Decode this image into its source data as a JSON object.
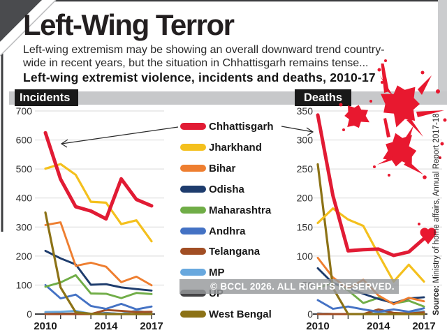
{
  "header": {
    "title": "Left-Wing Terror",
    "subtitle_line1": "Left-wing extremism may be showing an overall downward trend country-",
    "subtitle_line2": "wide in recent years, but the situation in Chhattisgarh remains tense...",
    "chart_heading": "Left-wing extremist violence, incidents and deaths, 2010-17"
  },
  "panels": {
    "left_label": "Incidents",
    "right_label": "Deaths"
  },
  "legend": {
    "items": [
      {
        "name": "Chhattisgarh",
        "color": "#e11b34"
      },
      {
        "name": "Jharkhand",
        "color": "#f4c01d"
      },
      {
        "name": "Bihar",
        "color": "#ee7e30"
      },
      {
        "name": "Odisha",
        "color": "#1e3c6d"
      },
      {
        "name": "Maharashtra",
        "color": "#70ad47"
      },
      {
        "name": "Andhra",
        "color": "#4472c4"
      },
      {
        "name": "Telangana",
        "color": "#a14e24"
      },
      {
        "name": "MP",
        "color": "#68a8de"
      },
      {
        "name": "UP",
        "color": "#444446"
      },
      {
        "name": "West Bengal",
        "color": "#8c7216"
      }
    ]
  },
  "watermark": "© BCCL 2026. ALL RIGHTS RESERVED.",
  "source": {
    "prefix": "Source:",
    "text": " Ministry of home affairs, Annual Report 2017-18"
  },
  "colors": {
    "splatter_red": "#e8182f",
    "band_gray": "#c7c8ca",
    "box_black": "#191919"
  },
  "chart_data": [
    {
      "type": "line",
      "title": "Incidents",
      "x": [
        2010,
        2011,
        2012,
        2013,
        2014,
        2015,
        2016,
        2017
      ],
      "x_tick_labels": [
        {
          "label": "2010",
          "index": 0
        },
        {
          "label": "2014",
          "index": 4
        },
        {
          "label": "2017",
          "index": 7
        }
      ],
      "ylim": [
        0,
        700
      ],
      "ytick_step": 100,
      "grid": true,
      "series": [
        {
          "name": "Chhattisgarh",
          "values": [
            625,
            465,
            370,
            355,
            328,
            466,
            395,
            373
          ]
        },
        {
          "name": "Jharkhand",
          "values": [
            501,
            517,
            480,
            387,
            384,
            310,
            323,
            251
          ]
        },
        {
          "name": "Bihar",
          "values": [
            307,
            316,
            166,
            177,
            163,
            110,
            129,
            99
          ]
        },
        {
          "name": "Odisha",
          "values": [
            218,
            192,
            171,
            101,
            103,
            92,
            86,
            81
          ]
        },
        {
          "name": "Maharashtra",
          "values": [
            94,
            109,
            134,
            71,
            70,
            55,
            73,
            69
          ]
        },
        {
          "name": "Andhra",
          "values": [
            100,
            54,
            67,
            28,
            18,
            35,
            16,
            26
          ]
        },
        {
          "name": "Telangana",
          "values": [
            0,
            0,
            0,
            0,
            14,
            11,
            7,
            8
          ]
        },
        {
          "name": "MP",
          "values": [
            7,
            8,
            11,
            1,
            3,
            1,
            12,
            3
          ]
        },
        {
          "name": "UP",
          "values": [
            6,
            1,
            2,
            0,
            4,
            0,
            0,
            0
          ]
        },
        {
          "name": "West Bengal",
          "values": [
            350,
            92,
            6,
            1,
            0,
            0,
            0,
            0
          ]
        }
      ]
    },
    {
      "type": "line",
      "title": "Deaths",
      "x": [
        2010,
        2011,
        2012,
        2013,
        2014,
        2015,
        2016,
        2017
      ],
      "x_tick_labels": [
        {
          "label": "2010",
          "index": 0
        },
        {
          "label": "2014",
          "index": 4
        },
        {
          "label": "2017",
          "index": 7
        }
      ],
      "ylim": [
        0,
        350
      ],
      "ytick_step": 50,
      "grid": true,
      "series": [
        {
          "name": "Chhattisgarh",
          "values": [
            343,
            204,
            109,
            111,
            112,
            101,
            107,
            130
          ]
        },
        {
          "name": "Jharkhand",
          "values": [
            157,
            182,
            163,
            152,
            103,
            56,
            85,
            56
          ]
        },
        {
          "name": "Bihar",
          "values": [
            97,
            63,
            44,
            59,
            32,
            17,
            28,
            22
          ]
        },
        {
          "name": "Odisha",
          "values": [
            79,
            53,
            45,
            35,
            26,
            19,
            27,
            29
          ]
        },
        {
          "name": "Maharashtra",
          "values": [
            45,
            54,
            41,
            19,
            28,
            18,
            23,
            13
          ]
        },
        {
          "name": "Andhra",
          "values": [
            24,
            9,
            13,
            8,
            4,
            8,
            4,
            10
          ]
        },
        {
          "name": "Telangana",
          "values": [
            0,
            0,
            0,
            0,
            8,
            2,
            1,
            3
          ]
        },
        {
          "name": "MP",
          "values": [
            1,
            0,
            0,
            0,
            2,
            1,
            2,
            5
          ]
        },
        {
          "name": "UP",
          "values": [
            1,
            0,
            0,
            0,
            0,
            0,
            0,
            0
          ]
        },
        {
          "name": "West Bengal",
          "values": [
            258,
            45,
            0,
            0,
            0,
            0,
            0,
            0
          ]
        }
      ]
    }
  ]
}
